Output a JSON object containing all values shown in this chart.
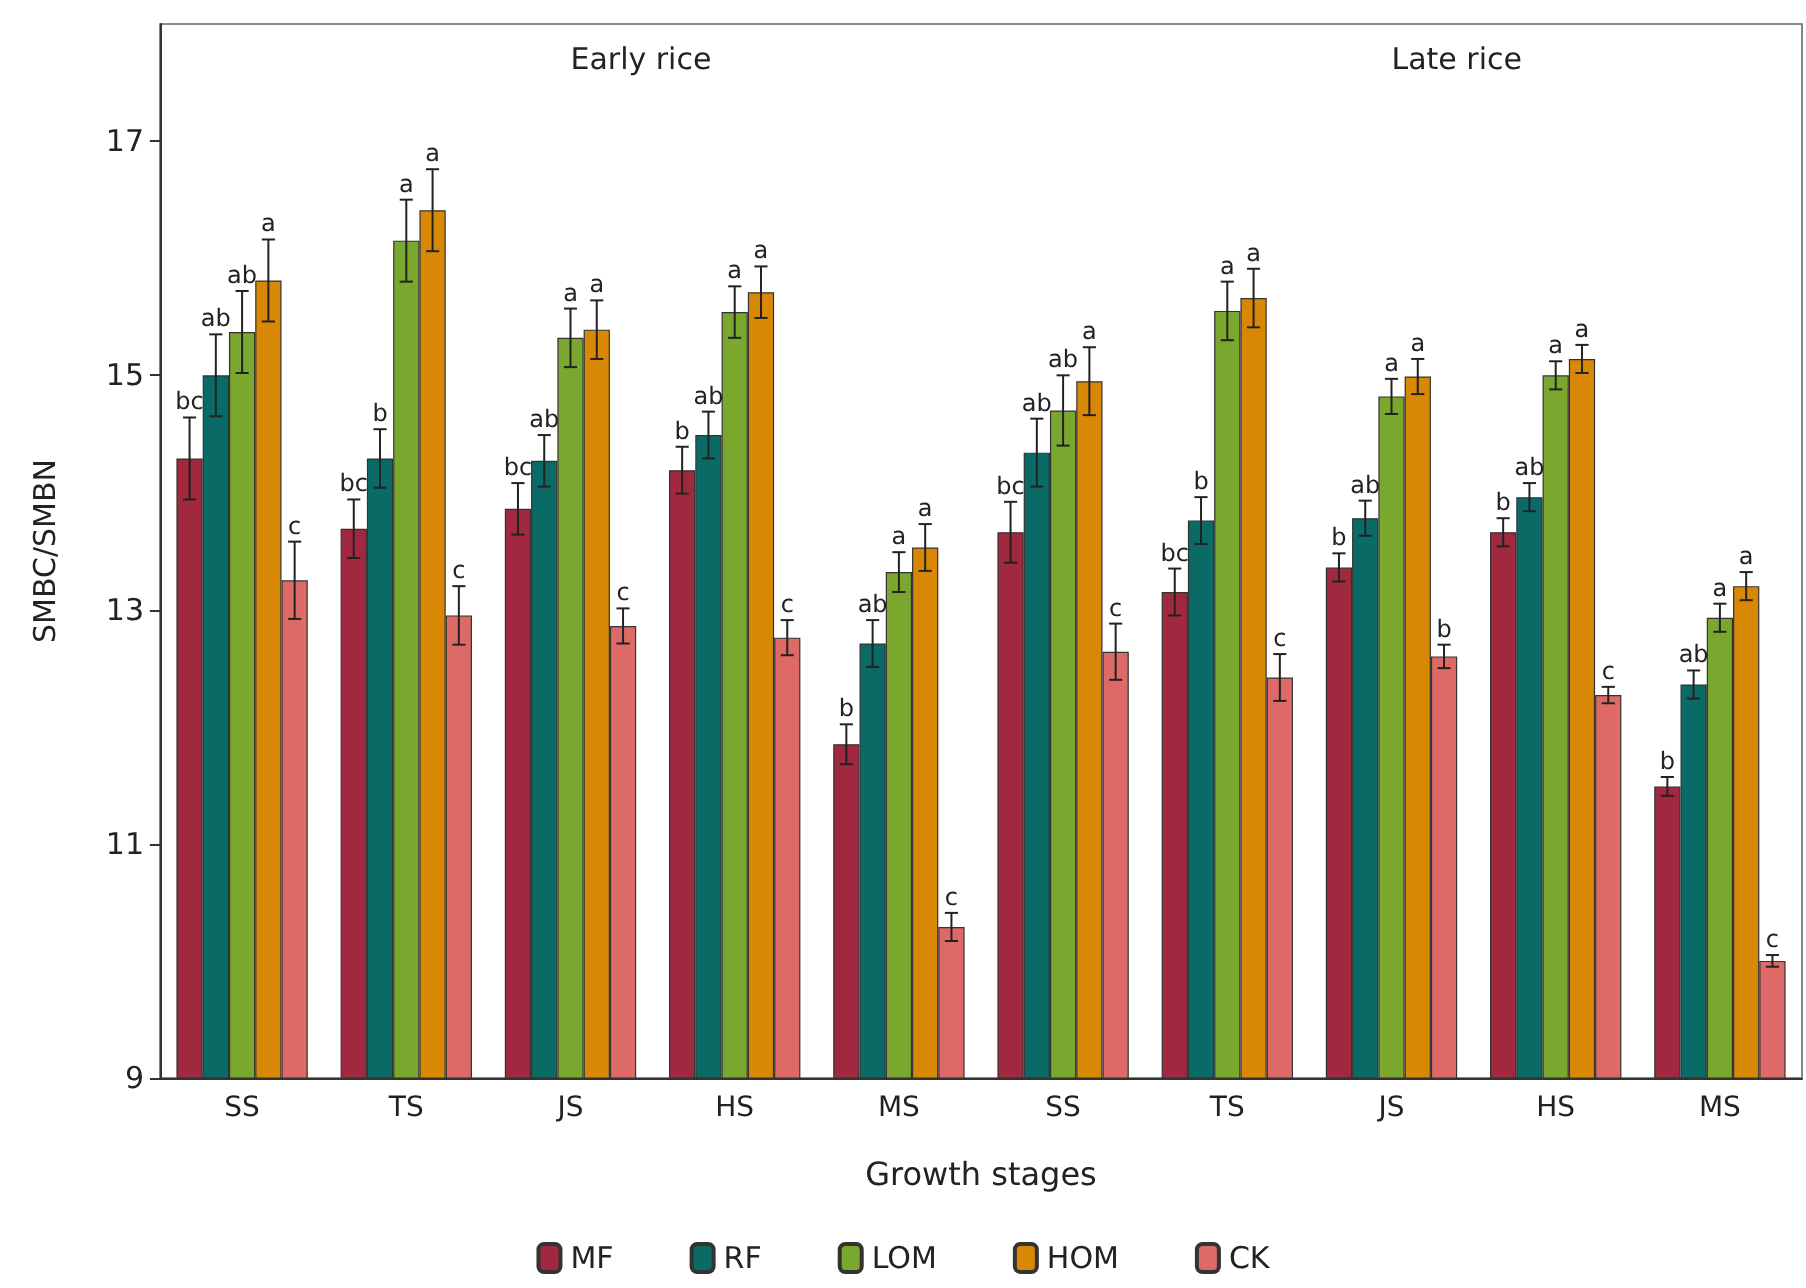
{
  "chart_data": {
    "type": "bar",
    "xlabel": "Growth stages",
    "ylabel": "SMBC/SMBN",
    "annotations": [
      "Early rice",
      "Late rice"
    ],
    "categories": [
      "SS",
      "TS",
      "JS",
      "HS",
      "MS",
      "SS",
      "TS",
      "JS",
      "HS",
      "MS"
    ],
    "ylim": [
      9,
      18
    ],
    "yticks": [
      9,
      11,
      13,
      15,
      17
    ],
    "grid": false,
    "legend": "bottom",
    "series": [
      {
        "name": "MF",
        "color": "#a0283f",
        "values": [
          14.29,
          13.69,
          13.86,
          14.19,
          11.85,
          13.66,
          13.15,
          13.36,
          13.66,
          11.49
        ],
        "errors": [
          0.35,
          0.25,
          0.22,
          0.2,
          0.17,
          0.26,
          0.2,
          0.12,
          0.12,
          0.08
        ],
        "value_labels": [
          "bc",
          "bc",
          "bc",
          "b",
          "b",
          "bc",
          "bc",
          "b",
          "b",
          "b"
        ]
      },
      {
        "name": "RF",
        "color": "#0a6b66",
        "values": [
          15.0,
          14.29,
          14.27,
          14.49,
          12.71,
          14.34,
          13.76,
          13.78,
          13.96,
          12.36
        ],
        "errors": [
          0.35,
          0.25,
          0.22,
          0.2,
          0.2,
          0.29,
          0.2,
          0.15,
          0.12,
          0.12
        ],
        "value_labels": [
          "ab",
          "b",
          "ab",
          "ab",
          "ab",
          "ab",
          "b",
          "ab",
          "ab",
          "ab"
        ]
      },
      {
        "name": "LOM",
        "color": "#7aa72e",
        "values": [
          15.37,
          16.15,
          15.32,
          15.54,
          13.32,
          14.7,
          15.55,
          14.82,
          15.0,
          12.93
        ],
        "errors": [
          0.35,
          0.35,
          0.25,
          0.22,
          0.17,
          0.3,
          0.25,
          0.15,
          0.12,
          0.12
        ],
        "value_labels": [
          "ab",
          "a",
          "a",
          "a",
          "a",
          "ab",
          "a",
          "a",
          "a",
          "a"
        ]
      },
      {
        "name": "HOM",
        "color": "#d98806",
        "values": [
          15.81,
          16.41,
          15.39,
          15.71,
          13.53,
          14.95,
          15.66,
          14.99,
          15.14,
          13.2
        ],
        "errors": [
          0.35,
          0.35,
          0.25,
          0.22,
          0.2,
          0.29,
          0.25,
          0.15,
          0.12,
          0.12
        ],
        "value_labels": [
          "a",
          "a",
          "a",
          "a",
          "a",
          "a",
          "a",
          "a",
          "a",
          "a"
        ]
      },
      {
        "name": "CK",
        "color": "#dd6a66",
        "values": [
          13.25,
          12.95,
          12.86,
          12.76,
          10.29,
          12.64,
          12.42,
          12.6,
          12.27,
          10.0
        ],
        "errors": [
          0.33,
          0.25,
          0.15,
          0.15,
          0.12,
          0.24,
          0.2,
          0.1,
          0.07,
          0.05
        ],
        "value_labels": [
          "c",
          "c",
          "c",
          "c",
          "c",
          "c",
          "c",
          "b",
          "c",
          "c"
        ]
      }
    ]
  }
}
